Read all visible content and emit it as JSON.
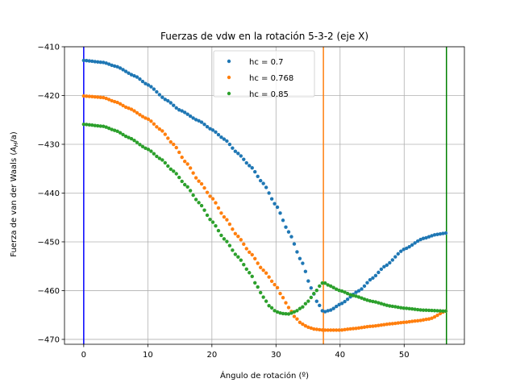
{
  "chart_data": {
    "type": "scatter",
    "title": "Fuerzas de vdw en la rotación 5-3-2 (eje X)",
    "xlabel": "Ángulo de rotación (º)",
    "ylabel_main": "Fuerza de van der Waals (",
    "ylabel_symbol": "A",
    "ylabel_sub": "H",
    "ylabel_tail": "/a)",
    "xlim": [
      -3,
      59.4
    ],
    "ylim": [
      -471,
      -410
    ],
    "xticks": [
      0,
      10,
      20,
      30,
      40,
      50
    ],
    "yticks": [
      -410,
      -420,
      -430,
      -440,
      -450,
      -460,
      -470
    ],
    "xtick_labels": [
      "0",
      "10",
      "20",
      "30",
      "40",
      "50"
    ],
    "ytick_labels": [
      "−410",
      "−420",
      "−430",
      "−440",
      "−450",
      "−460",
      "−470"
    ],
    "grid": true,
    "legend_position": "top-center",
    "series": [
      {
        "name": "hc = 0.7",
        "color": "#1f77b4",
        "key_points": [
          [
            0,
            -412.8
          ],
          [
            3,
            -413.2
          ],
          [
            5,
            -414
          ],
          [
            8,
            -416
          ],
          [
            10,
            -417.8
          ],
          [
            13,
            -421
          ],
          [
            15,
            -423
          ],
          [
            18,
            -425.2
          ],
          [
            20,
            -427
          ],
          [
            22,
            -429
          ],
          [
            24,
            -431.8
          ],
          [
            26,
            -434.5
          ],
          [
            28,
            -438
          ],
          [
            30,
            -442.5
          ],
          [
            32,
            -448
          ],
          [
            34,
            -454
          ],
          [
            35.5,
            -459.5
          ],
          [
            36.5,
            -462.5
          ],
          [
            37.4,
            -464.4
          ],
          [
            38.5,
            -464
          ],
          [
            40,
            -462.8
          ],
          [
            43,
            -460
          ],
          [
            45,
            -457.5
          ],
          [
            47,
            -455
          ],
          [
            50,
            -451.5
          ],
          [
            53,
            -449.3
          ],
          [
            55,
            -448.5
          ],
          [
            56.5,
            -448.2
          ]
        ]
      },
      {
        "name": "hc = 0.768",
        "color": "#ff7f0e",
        "key_points": [
          [
            0,
            -420.1
          ],
          [
            3,
            -420.4
          ],
          [
            5,
            -421.3
          ],
          [
            7,
            -422.6
          ],
          [
            10,
            -424.8
          ],
          [
            12,
            -427
          ],
          [
            14,
            -430
          ],
          [
            16,
            -433.8
          ],
          [
            18,
            -437.6
          ],
          [
            20,
            -441
          ],
          [
            22,
            -445
          ],
          [
            24,
            -448.8
          ],
          [
            26,
            -452.3
          ],
          [
            28,
            -455.8
          ],
          [
            30,
            -459
          ],
          [
            31,
            -461.3
          ],
          [
            32,
            -463.5
          ],
          [
            33,
            -465.5
          ],
          [
            34,
            -466.8
          ],
          [
            35,
            -467.5
          ],
          [
            36,
            -467.9
          ],
          [
            37.4,
            -468.1
          ],
          [
            40,
            -468.1
          ],
          [
            42,
            -467.8
          ],
          [
            45,
            -467.3
          ],
          [
            48,
            -466.8
          ],
          [
            50,
            -466.5
          ],
          [
            52,
            -466.2
          ],
          [
            54,
            -465.8
          ],
          [
            56.5,
            -464.2
          ]
        ]
      },
      {
        "name": "hc = 0.85",
        "color": "#2ca02c",
        "key_points": [
          [
            0,
            -425.9
          ],
          [
            3,
            -426.3
          ],
          [
            5,
            -427.2
          ],
          [
            7,
            -428.6
          ],
          [
            10,
            -431
          ],
          [
            12,
            -433
          ],
          [
            14,
            -435.5
          ],
          [
            16,
            -438.5
          ],
          [
            18,
            -442
          ],
          [
            20,
            -445.8
          ],
          [
            22,
            -449.5
          ],
          [
            24,
            -453
          ],
          [
            26,
            -456.5
          ],
          [
            27,
            -459
          ],
          [
            28,
            -461.3
          ],
          [
            29,
            -463.2
          ],
          [
            30,
            -464.3
          ],
          [
            31,
            -464.7
          ],
          [
            32,
            -464.8
          ],
          [
            33,
            -464.3
          ],
          [
            34,
            -463.5
          ],
          [
            35,
            -462.2
          ],
          [
            36,
            -460.5
          ],
          [
            37,
            -458.8
          ],
          [
            37.4,
            -458.2
          ],
          [
            38,
            -458.8
          ],
          [
            40,
            -460
          ],
          [
            42,
            -461
          ],
          [
            45,
            -462.2
          ],
          [
            48,
            -463.2
          ],
          [
            50,
            -463.6
          ],
          [
            53,
            -464
          ],
          [
            56.5,
            -464.2
          ]
        ]
      }
    ],
    "vlines": [
      {
        "x": 0,
        "color": "#0000ff"
      },
      {
        "x": 37.4,
        "color": "#ff7f0e"
      },
      {
        "x": 56.6,
        "color": "#008000"
      }
    ],
    "n_points_per_series": 130
  }
}
